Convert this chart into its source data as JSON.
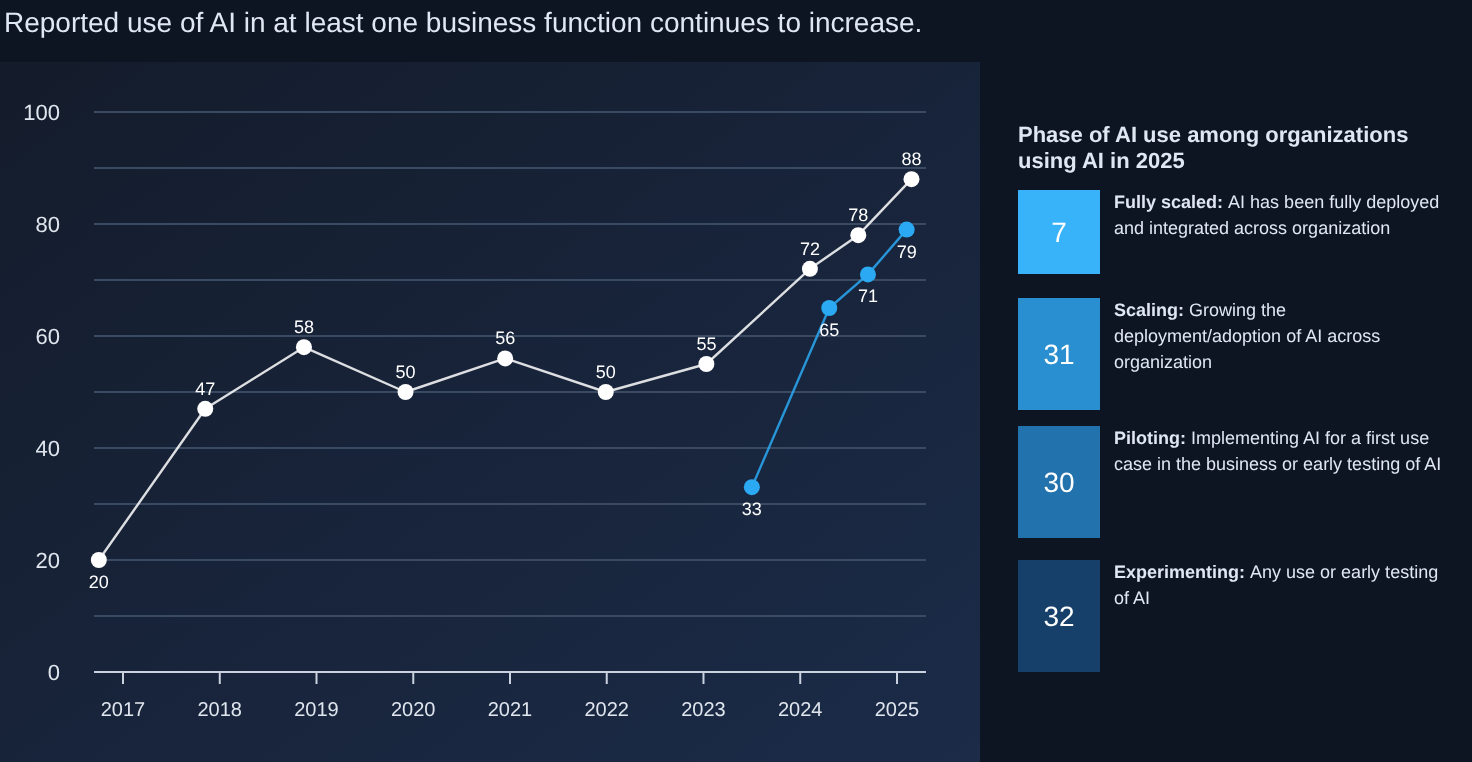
{
  "chart_data": [
    {
      "type": "line",
      "title": "Reported use of AI in at least one business function continues to increase.",
      "xlim": [
        2016.7,
        2025.3
      ],
      "xticks": [
        2017,
        2018,
        2019,
        2020,
        2021,
        2022,
        2023,
        2024,
        2025
      ],
      "ylim": [
        0,
        100
      ],
      "yticks": [
        0,
        {
          "value": 10,
          "label": null
        },
        20,
        {
          "value": 30,
          "label": null
        },
        40,
        {
          "value": 50,
          "label": null
        },
        60,
        {
          "value": 70,
          "label": null
        },
        80,
        {
          "value": 90,
          "label": null
        },
        100
      ],
      "grid": "y",
      "marker": "circle",
      "data_labels": true,
      "series": [
        {
          "color": "#ffffff",
          "x": [
            2016.75,
            2017.85,
            2018.87,
            2019.92,
            2020.95,
            2021.99,
            2023.03,
            2024.1,
            2024.6,
            2025.15
          ],
          "values": [
            20,
            47,
            58,
            50,
            56,
            50,
            55,
            72,
            78,
            88
          ]
        },
        {
          "color": "#2ba9f3",
          "x": [
            2023.5,
            2024.3,
            2024.7,
            2025.1
          ],
          "values": [
            33,
            65,
            71,
            79
          ]
        }
      ]
    },
    {
      "type": "other",
      "title": "Phase of AI use among organizations using AI in 2025",
      "categories": [
        "Fully scaled: AI has been fully deployed and integrated across organization",
        "Scaling: Growing the deployment/adoption of AI across organization",
        "Piloting: Implementing AI for a first use case in the business or early testing of AI",
        "Experimenting: Any use or early testing of AI"
      ],
      "values": [
        7,
        31,
        30,
        32
      ],
      "data_labels": true,
      "colors": [
        "#38b2f8",
        "#2a8fd0",
        "#2272ad",
        "#163f6a"
      ]
    }
  ]
}
